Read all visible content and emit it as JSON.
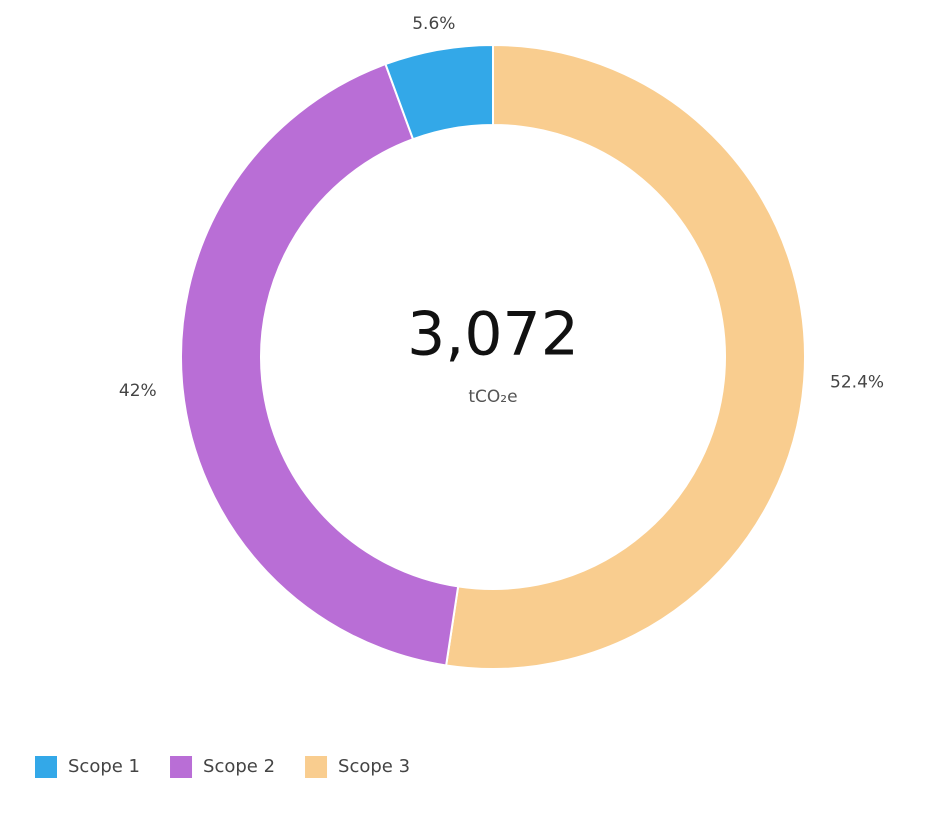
{
  "chart_data": {
    "type": "donut",
    "categories": [
      "Scope 1",
      "Scope 2",
      "Scope 3"
    ],
    "values": [
      5.6,
      42,
      52.4
    ],
    "value_labels": [
      "5.6%",
      "42%",
      "52.4%"
    ],
    "colors": [
      "#33a8e8",
      "#b96ed6",
      "#f9cd8f"
    ],
    "center_label": "3,072",
    "center_sublabel": "tCO₂e",
    "legend": "bottom-left"
  }
}
